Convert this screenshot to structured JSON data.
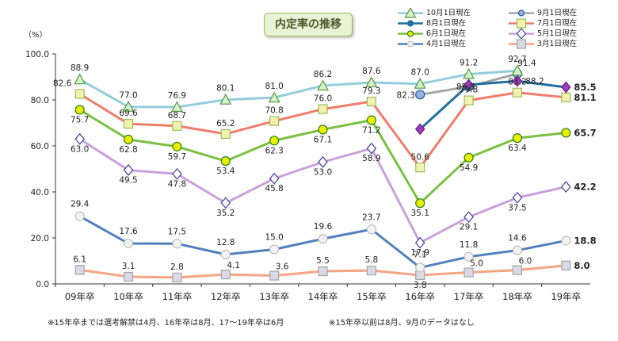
{
  "chart_data": {
    "type": "line",
    "title": "内定率の推移",
    "ylabel": "（%）",
    "ylim": [
      0,
      100
    ],
    "yticks": [
      "0.0",
      "20.0",
      "40.0",
      "60.0",
      "80.0",
      "100.0"
    ],
    "categories": [
      "09年卒",
      "10年卒",
      "11年卒",
      "12年卒",
      "13年卒",
      "14年卒",
      "15年卒",
      "16年卒",
      "17年卒",
      "18年卒",
      "19年卒"
    ],
    "series": [
      {
        "name": "10月1日現在",
        "color": "#93cddd",
        "marker": "triangle",
        "markerFill": "#d9f0c4",
        "markerStroke": "#4f9a4a",
        "values": [
          88.9,
          77.0,
          76.9,
          80.1,
          81.0,
          86.2,
          87.6,
          87.0,
          91.2,
          92.7,
          null
        ],
        "labels": [
          "88.9",
          "77.0",
          "76.9",
          "80.1",
          "81.0",
          "86.2",
          "87.6",
          "87.0",
          "91.2",
          "92.7",
          null
        ]
      },
      {
        "name": "9月1日現在",
        "color": "#a6a6a6",
        "marker": "circle",
        "markerFill": "#8fb4e3",
        "markerStroke": "#2f5597",
        "values": [
          null,
          null,
          null,
          null,
          null,
          null,
          null,
          82.3,
          85.8,
          91.4,
          null
        ],
        "labels": [
          null,
          null,
          null,
          null,
          null,
          null,
          null,
          "82.3",
          "85.8",
          "91.4",
          null
        ]
      },
      {
        "name": "8月1日現在",
        "color": "#1f6f9f",
        "marker": "circle",
        "markerFill": "#1f6f9f",
        "markerStroke": "#1f6f9f",
        "values": [
          null,
          null,
          null,
          null,
          null,
          null,
          null,
          67.3,
          86.6,
          88.2,
          85.5
        ],
        "labels": [
          null,
          null,
          null,
          null,
          null,
          null,
          null,
          null,
          null,
          "88.2",
          "85.5"
        ]
      },
      {
        "name": "7月1日現在",
        "color": "#f07c6c",
        "marker": "square",
        "markerFill": "#f2f2b0",
        "markerStroke": "#9bbb59",
        "values": [
          82.6,
          69.6,
          68.7,
          65.2,
          70.8,
          76.0,
          79.3,
          50.6,
          79.8,
          83.2,
          81.1
        ],
        "labels": [
          "82.6",
          "69.6",
          "68.7",
          "65.2",
          "70.8",
          "76.0",
          "79.3",
          "50.6",
          "79.8",
          "83.2",
          "81.1"
        ]
      },
      {
        "name": "6月1日現在",
        "color": "#7ac143",
        "marker": "circle",
        "markerFill": "#e6f000",
        "markerStroke": "#2e7d1f",
        "values": [
          75.7,
          62.8,
          59.7,
          53.4,
          62.3,
          67.1,
          71.2,
          35.1,
          54.9,
          63.4,
          65.7
        ],
        "labels": [
          "75.7",
          "62.8",
          "59.7",
          "53.4",
          "62.3",
          "67.1",
          "71.2",
          "35.1",
          "54.9",
          "63.4",
          "65.7"
        ]
      },
      {
        "name": "5月1日現在",
        "color": "#c9a0dc",
        "marker": "diamond",
        "markerFill": "#ffffff",
        "markerStroke": "#3f3f9f",
        "values": [
          63.0,
          49.5,
          47.8,
          35.2,
          45.8,
          53.0,
          58.9,
          17.9,
          29.1,
          37.5,
          42.2
        ],
        "labels": [
          "63.0",
          "49.5",
          "47.8",
          "35.2",
          "45.8",
          "53.0",
          "58.9",
          "17.9",
          "29.1",
          "37.5",
          "42.2"
        ]
      },
      {
        "name": "4月1日現在",
        "color": "#4f81bd",
        "marker": "circle",
        "markerFill": "#f2f2f2",
        "markerStroke": "#bfbfbf",
        "values": [
          29.4,
          17.6,
          17.5,
          12.8,
          15.0,
          19.6,
          23.7,
          7.1,
          11.8,
          14.6,
          18.8
        ],
        "labels": [
          "29.4",
          "17.6",
          "17.5",
          "12.8",
          "15.0",
          "19.6",
          "23.7",
          "7.1",
          "11.8",
          "14.6",
          "18.8"
        ]
      },
      {
        "name": "3月1日現在",
        "color": "#f4a582",
        "marker": "square",
        "markerFill": "#d9d9e8",
        "markerStroke": "#a6a6a6",
        "values": [
          6.1,
          3.1,
          2.8,
          4.1,
          3.6,
          5.5,
          5.8,
          3.8,
          5.0,
          6.0,
          8.0
        ],
        "labels": [
          "6.1",
          "3.1",
          "2.8",
          "4.1",
          "3.6",
          "5.5",
          "5.8",
          "3.8",
          "5.0",
          "6.0",
          "8.0"
        ]
      }
    ],
    "special_markers": [
      {
        "series": "8月1日現在",
        "index": 7,
        "color": "#9b3fb5"
      },
      {
        "series": "8月1日現在",
        "index": 8,
        "color": "#9b3fb5"
      },
      {
        "series": "8月1日現在",
        "index": 9,
        "color": "#9b3fb5"
      },
      {
        "series": "8月1日現在",
        "index": 10,
        "color": "#9b3fb5"
      }
    ],
    "notes": [
      "※15年卒までは選考解禁は4月、16年卒は8月、17～19年卒は6月",
      "※15年卒以前は8月、9月のデータはなし"
    ]
  }
}
